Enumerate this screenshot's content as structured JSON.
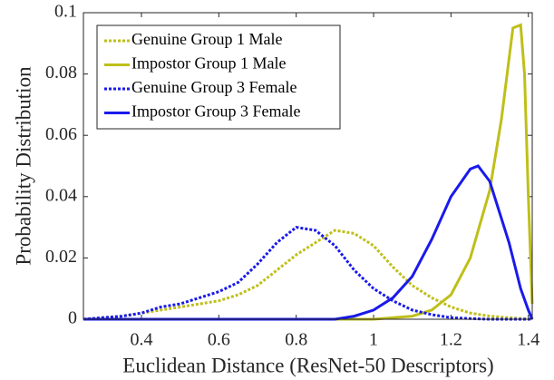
{
  "chart_data": {
    "type": "line",
    "xlabel": "Euclidean Distance (ResNet-50 Descriptors)",
    "ylabel": "Probability Distribution",
    "xlim": [
      0.25,
      1.41
    ],
    "ylim": [
      0,
      0.1
    ],
    "xticks": [
      0.4,
      0.6,
      0.8,
      1,
      1.2,
      1.4
    ],
    "yticks": [
      0,
      0.02,
      0.04,
      0.06,
      0.08,
      0.1
    ],
    "legend": "upper left",
    "series": [
      {
        "name": "Genuine Group 1 Male",
        "color": "#bfbf1a",
        "style": "dotted",
        "x": [
          0.25,
          0.3,
          0.35,
          0.4,
          0.45,
          0.5,
          0.55,
          0.6,
          0.65,
          0.7,
          0.75,
          0.8,
          0.85,
          0.9,
          0.95,
          1.0,
          1.05,
          1.1,
          1.15,
          1.2,
          1.25,
          1.3,
          1.35,
          1.41
        ],
        "values": [
          0,
          0.0005,
          0.001,
          0.002,
          0.003,
          0.004,
          0.005,
          0.006,
          0.008,
          0.011,
          0.016,
          0.021,
          0.025,
          0.029,
          0.028,
          0.024,
          0.017,
          0.011,
          0.007,
          0.004,
          0.002,
          0.001,
          0.0005,
          0
        ]
      },
      {
        "name": "Impostor Group 1 Male",
        "color": "#bfbf1a",
        "style": "solid",
        "x": [
          0.25,
          1.0,
          1.1,
          1.15,
          1.2,
          1.25,
          1.3,
          1.33,
          1.36,
          1.38,
          1.39,
          1.4,
          1.41
        ],
        "values": [
          0,
          0,
          0.001,
          0.003,
          0.008,
          0.02,
          0.042,
          0.065,
          0.095,
          0.096,
          0.08,
          0.04,
          0.005
        ]
      },
      {
        "name": "Genuine Group 3 Female",
        "color": "#1a1aeb",
        "style": "dotted",
        "x": [
          0.25,
          0.3,
          0.35,
          0.4,
          0.45,
          0.5,
          0.55,
          0.6,
          0.65,
          0.7,
          0.75,
          0.8,
          0.85,
          0.9,
          0.95,
          1.0,
          1.05,
          1.1,
          1.15,
          1.2,
          1.25,
          1.3,
          1.41
        ],
        "values": [
          0,
          0.0005,
          0.001,
          0.002,
          0.004,
          0.005,
          0.007,
          0.009,
          0.012,
          0.018,
          0.025,
          0.03,
          0.029,
          0.024,
          0.016,
          0.01,
          0.006,
          0.003,
          0.0015,
          0.0005,
          0.0002,
          0,
          0
        ]
      },
      {
        "name": "Impostor Group 3 Female",
        "color": "#1a1aeb",
        "style": "solid",
        "x": [
          0.25,
          0.9,
          0.95,
          1.0,
          1.05,
          1.1,
          1.15,
          1.2,
          1.25,
          1.27,
          1.3,
          1.35,
          1.38,
          1.4,
          1.41
        ],
        "values": [
          0,
          0,
          0.001,
          0.003,
          0.007,
          0.014,
          0.026,
          0.04,
          0.049,
          0.05,
          0.045,
          0.025,
          0.01,
          0.003,
          0
        ]
      }
    ]
  }
}
